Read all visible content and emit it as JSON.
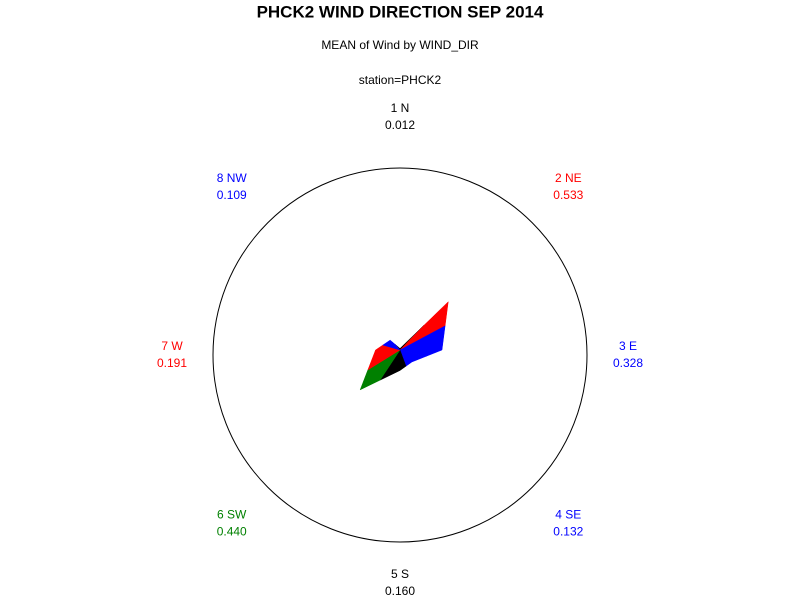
{
  "chart_data": {
    "type": "star",
    "title": "PHCK2 WIND DIRECTION SEP 2014",
    "subtitle": "MEAN of Wind by WIND_DIR",
    "subtitle2": "station=PHCK2",
    "categories": [
      "1 N",
      "2 NE",
      "3 E",
      "4 SE",
      "5 S",
      "6 SW",
      "7 W",
      "8 NW"
    ],
    "values": [
      0.012,
      0.533,
      0.328,
      0.132,
      0.16,
      0.44,
      0.191,
      0.109
    ],
    "value_labels": [
      "0.012",
      "0.533",
      "0.328",
      "0.132",
      "0.160",
      "0.440",
      "0.191",
      "0.109"
    ],
    "colors": [
      "#000000",
      "#ff0000",
      "#0000ff",
      "#0000ff",
      "#000000",
      "#008000",
      "#ff0000",
      "#0000ff"
    ]
  }
}
